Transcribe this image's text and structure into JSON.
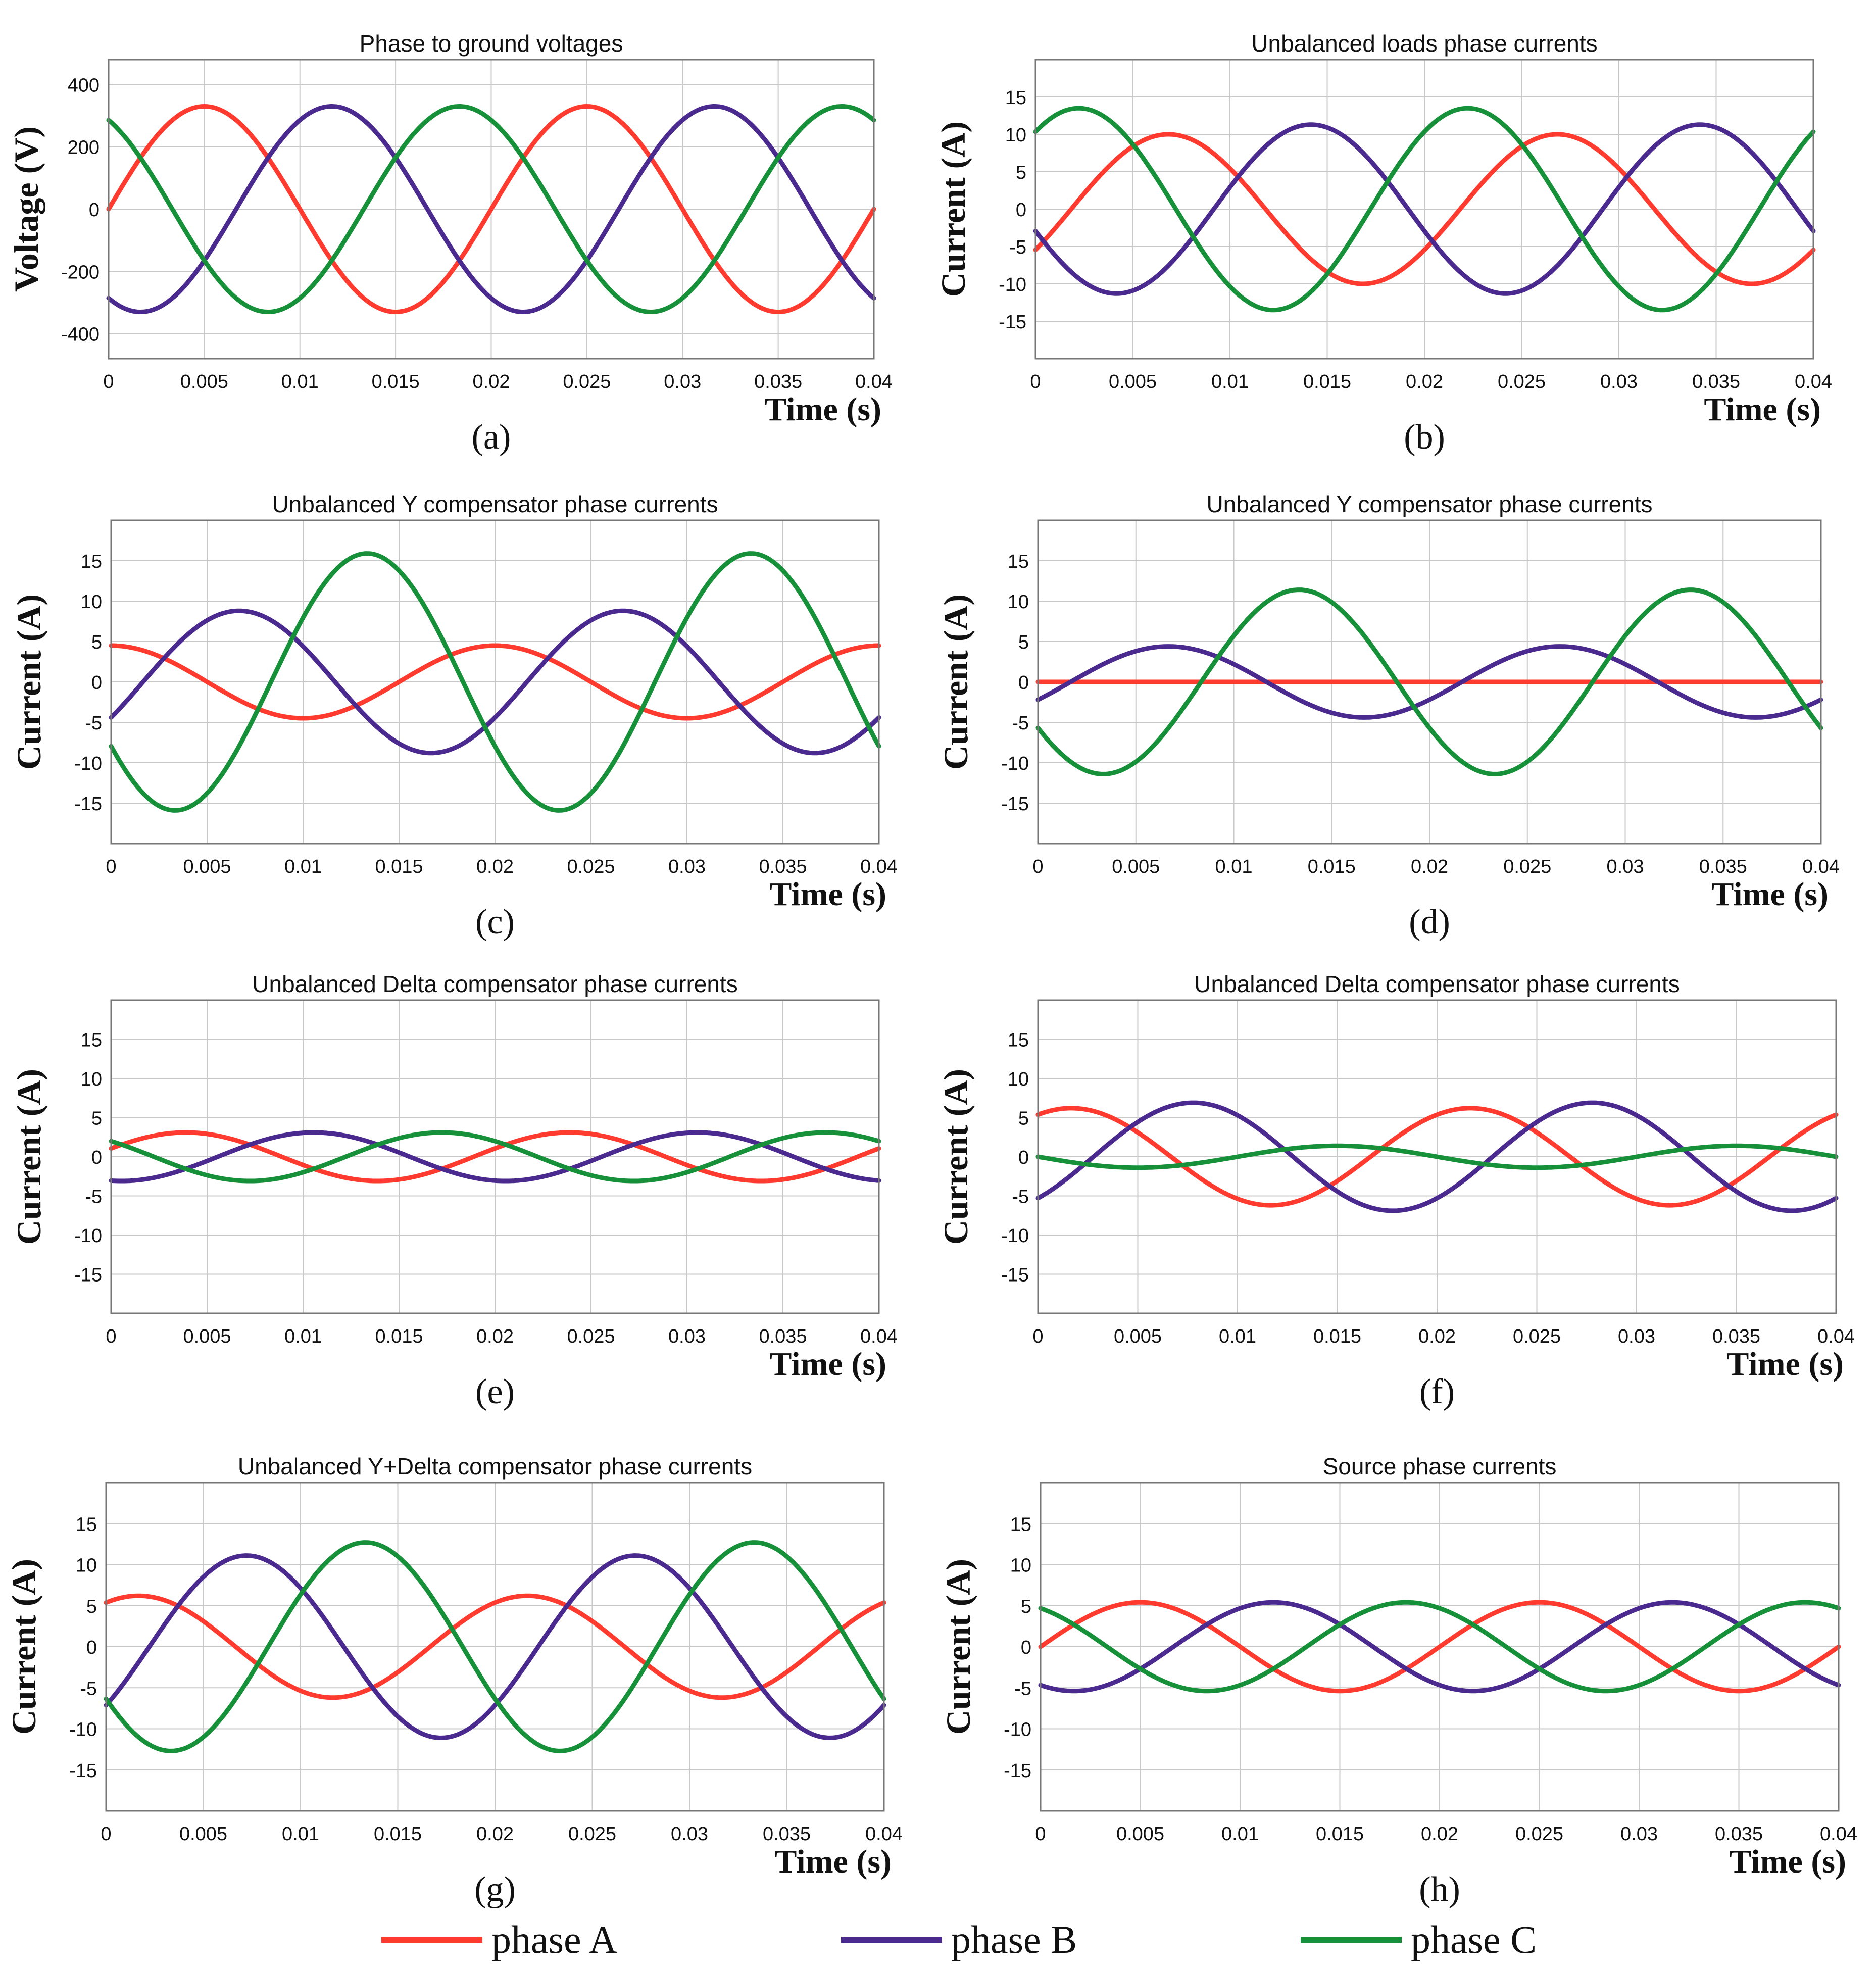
{
  "colors": {
    "phaseA": "#ff3b30",
    "phaseB": "#4b2a8f",
    "phaseC": "#16913a"
  },
  "legend": [
    {
      "label": "phase A",
      "color": "#ff3b30"
    },
    {
      "label": "phase B",
      "color": "#4b2a8f"
    },
    {
      "label": "phase C",
      "color": "#16913a"
    }
  ],
  "chart_data": [
    {
      "type": "line",
      "panel_label": "(a)",
      "title": "Phase to ground voltages",
      "xlabel": "Time (s)",
      "ylabel": "Voltage (V)",
      "xlim": [
        0,
        0.04
      ],
      "ylim": [
        -480,
        480
      ],
      "xticks": [
        0,
        0.005,
        0.01,
        0.015,
        0.02,
        0.025,
        0.03,
        0.035,
        0.04
      ],
      "xtick_labels": [
        "0",
        "0.005",
        "0.01",
        "0.015",
        "0.02",
        "0.025",
        "0.03",
        "0.035",
        "0.04"
      ],
      "yticks": [
        -400,
        -200,
        0,
        200,
        400
      ],
      "grid": true,
      "frequency_hz": 50,
      "series": [
        {
          "name": "phase A",
          "amplitude": 330,
          "phase_deg": 0
        },
        {
          "name": "phase B",
          "amplitude": 330,
          "phase_deg": -120
        },
        {
          "name": "phase C",
          "amplitude": 330,
          "phase_deg": 120
        }
      ]
    },
    {
      "type": "line",
      "panel_label": "(b)",
      "title": "Unbalanced loads phase currents",
      "xlabel": "Time (s)",
      "ylabel": "Current (A)",
      "xlim": [
        0,
        0.04
      ],
      "ylim": [
        -20,
        20
      ],
      "xticks": [
        0,
        0.005,
        0.01,
        0.015,
        0.02,
        0.025,
        0.03,
        0.035,
        0.04
      ],
      "xtick_labels": [
        "0",
        "0.005",
        "0.01",
        "0.015",
        "0.02",
        "0.025",
        "0.03",
        "0.035",
        "0.04"
      ],
      "yticks": [
        -15,
        -10,
        -5,
        0,
        5,
        10,
        15
      ],
      "grid": true,
      "frequency_hz": 50,
      "series": [
        {
          "name": "phase A",
          "amplitude": 10,
          "phase_deg": -33
        },
        {
          "name": "phase B",
          "amplitude": 11.3,
          "phase_deg": -165
        },
        {
          "name": "phase C",
          "amplitude": 13.5,
          "phase_deg": 50
        }
      ]
    },
    {
      "type": "line",
      "panel_label": "(c)",
      "title": "Unbalanced Y compensator phase currents",
      "xlabel": "Time (s)",
      "ylabel": "Current (A)",
      "xlim": [
        0,
        0.04
      ],
      "ylim": [
        -20,
        20
      ],
      "xticks": [
        0,
        0.005,
        0.01,
        0.015,
        0.02,
        0.025,
        0.03,
        0.035,
        0.04
      ],
      "xtick_labels": [
        "0",
        "0.005",
        "0.01",
        "0.015",
        "0.02",
        "0.025",
        "0.03",
        "0.035",
        "0.04"
      ],
      "yticks": [
        -15,
        -10,
        -5,
        0,
        5,
        10,
        15
      ],
      "grid": true,
      "frequency_hz": 50,
      "series": [
        {
          "name": "phase A",
          "amplitude": 4.5,
          "phase_deg": 90
        },
        {
          "name": "phase B",
          "amplitude": 8.8,
          "phase_deg": -30
        },
        {
          "name": "phase C",
          "amplitude": 15.9,
          "phase_deg": -150
        }
      ]
    },
    {
      "type": "line",
      "panel_label": "(d)",
      "title": "Unbalanced Y compensator phase currents",
      "xlabel": "Time (s)",
      "ylabel": "Current (A)",
      "xlim": [
        0,
        0.04
      ],
      "ylim": [
        -20,
        20
      ],
      "xticks": [
        0,
        0.005,
        0.01,
        0.015,
        0.02,
        0.025,
        0.03,
        0.035,
        0.04
      ],
      "xtick_labels": [
        "0",
        "0.005",
        "0.01",
        "0.015",
        "0.02",
        "0.025",
        "0.03",
        "0.035",
        "0.04"
      ],
      "yticks": [
        -15,
        -10,
        -5,
        0,
        5,
        10,
        15
      ],
      "grid": true,
      "frequency_hz": 50,
      "series": [
        {
          "name": "phase A",
          "amplitude": 0,
          "phase_deg": 0
        },
        {
          "name": "phase B",
          "amplitude": 4.4,
          "phase_deg": -30
        },
        {
          "name": "phase C",
          "amplitude": 11.4,
          "phase_deg": -150
        }
      ]
    },
    {
      "type": "line",
      "panel_label": "(e)",
      "title": "Unbalanced  Delta compensator phase currents",
      "xlabel": "Time (s)",
      "ylabel": "Current (A)",
      "xlim": [
        0,
        0.04
      ],
      "ylim": [
        -20,
        20
      ],
      "xticks": [
        0,
        0.005,
        0.01,
        0.015,
        0.02,
        0.025,
        0.03,
        0.035,
        0.04
      ],
      "xtick_labels": [
        "0",
        "0.005",
        "0.01",
        "0.015",
        "0.02",
        "0.025",
        "0.03",
        "0.035",
        "0.04"
      ],
      "yticks": [
        -15,
        -10,
        -5,
        0,
        5,
        10,
        15
      ],
      "grid": true,
      "frequency_hz": 50,
      "series": [
        {
          "name": "phase A",
          "amplitude": 3.1,
          "phase_deg": 20
        },
        {
          "name": "phase B",
          "amplitude": 3.1,
          "phase_deg": -100
        },
        {
          "name": "phase C",
          "amplitude": 3.1,
          "phase_deg": 140
        }
      ]
    },
    {
      "type": "line",
      "panel_label": "(f)",
      "title": "Unbalanced  Delta compensator phase currents",
      "xlabel": "Time (s)",
      "ylabel": "Current (A)",
      "xlim": [
        0,
        0.04
      ],
      "ylim": [
        -20,
        20
      ],
      "xticks": [
        0,
        0.005,
        0.01,
        0.015,
        0.02,
        0.025,
        0.03,
        0.035,
        0.04
      ],
      "xtick_labels": [
        "0",
        "0.005",
        "0.01",
        "0.015",
        "0.02",
        "0.025",
        "0.03",
        "0.035",
        "0.04"
      ],
      "yticks": [
        -15,
        -10,
        -5,
        0,
        5,
        10,
        15
      ],
      "grid": true,
      "frequency_hz": 50,
      "series": [
        {
          "name": "phase A",
          "amplitude": 6.2,
          "phase_deg": 60
        },
        {
          "name": "phase B",
          "amplitude": 6.9,
          "phase_deg": -50
        },
        {
          "name": "phase C",
          "amplitude": 1.4,
          "phase_deg": -180
        }
      ]
    },
    {
      "type": "line",
      "panel_label": "(g)",
      "title": "Unbalanced Y+Delta compensator phase currents",
      "xlabel": "Time (s)",
      "ylabel": "Current (A)",
      "xlim": [
        0,
        0.04
      ],
      "ylim": [
        -20,
        20
      ],
      "xticks": [
        0,
        0.005,
        0.01,
        0.015,
        0.02,
        0.025,
        0.03,
        0.035,
        0.04
      ],
      "xtick_labels": [
        "0",
        "0.005",
        "0.01",
        "0.015",
        "0.02",
        "0.025",
        "0.03",
        "0.035",
        "0.04"
      ],
      "yticks": [
        -15,
        -10,
        -5,
        0,
        5,
        10,
        15
      ],
      "grid": true,
      "frequency_hz": 50,
      "series": [
        {
          "name": "phase A",
          "amplitude": 6.2,
          "phase_deg": 60
        },
        {
          "name": "phase B",
          "amplitude": 11.1,
          "phase_deg": -40
        },
        {
          "name": "phase C",
          "amplitude": 12.7,
          "phase_deg": -150
        }
      ]
    },
    {
      "type": "line",
      "panel_label": "(h)",
      "title": "Source phase currents",
      "xlabel": "Time (s)",
      "ylabel": "Current (A)",
      "xlim": [
        0,
        0.04
      ],
      "ylim": [
        -20,
        20
      ],
      "xticks": [
        0,
        0.005,
        0.01,
        0.015,
        0.02,
        0.025,
        0.03,
        0.035,
        0.04
      ],
      "xtick_labels": [
        "0",
        "0.005",
        "0.01",
        "0.015",
        "0.02",
        "0.025",
        "0.03",
        "0.035",
        "0.04"
      ],
      "yticks": [
        -15,
        -10,
        -5,
        0,
        5,
        10,
        15
      ],
      "grid": true,
      "frequency_hz": 50,
      "series": [
        {
          "name": "phase A",
          "amplitude": 5.4,
          "phase_deg": 0
        },
        {
          "name": "phase B",
          "amplitude": 5.4,
          "phase_deg": -120
        },
        {
          "name": "phase C",
          "amplitude": 5.4,
          "phase_deg": 120
        }
      ]
    }
  ]
}
